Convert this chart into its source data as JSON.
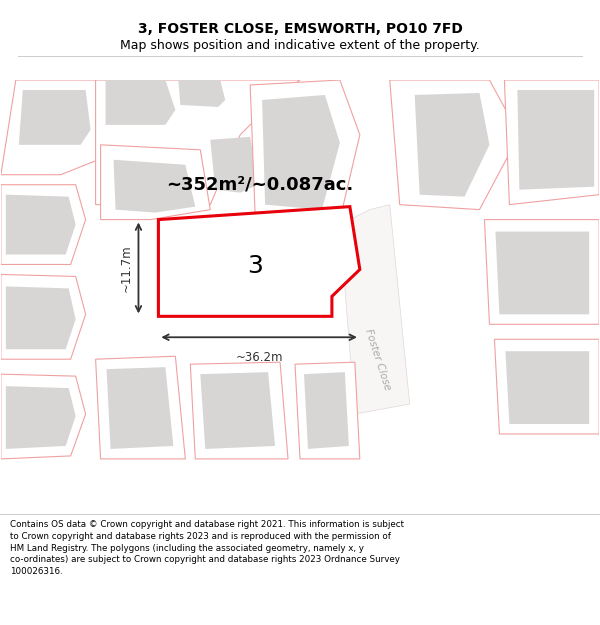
{
  "title": "3, FOSTER CLOSE, EMSWORTH, PO10 7FD",
  "subtitle": "Map shows position and indicative extent of the property.",
  "footer": "Contains OS data © Crown copyright and database right 2021. This information is subject to Crown copyright and database rights 2023 and is reproduced with the permission of HM Land Registry. The polygons (including the associated geometry, namely x, y co-ordinates) are subject to Crown copyright and database rights 2023 Ordnance Survey 100026316.",
  "area_text": "~352m²/~0.087ac.",
  "dim_width": "~36.2m",
  "dim_height": "~11.7m",
  "street_label": "Foster Close",
  "plot_number": "3",
  "bg_color": "#ffffff",
  "map_bg": "#ffffff",
  "plot_fill": "#ffffff",
  "plot_border": "#e8000a",
  "other_fill": "#ffffff",
  "other_border": "#f0a0a0",
  "building_fill": "#d8d5d5",
  "dim_color": "#333333",
  "title_color": "#000000",
  "footer_color": "#000000"
}
